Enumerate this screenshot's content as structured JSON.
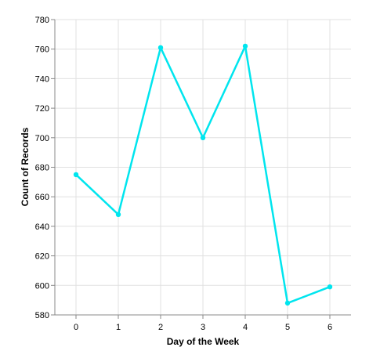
{
  "chart_data": {
    "type": "line",
    "title": "",
    "xlabel": "Day of the Week",
    "ylabel": "Count of Records",
    "x": [
      "0",
      "1",
      "2",
      "3",
      "4",
      "5",
      "6"
    ],
    "series": [
      {
        "values": [
          675,
          648,
          761,
          700,
          762,
          588,
          599
        ]
      }
    ],
    "ylim": [
      580,
      780
    ],
    "yticks": [
      "580",
      "600",
      "620",
      "640",
      "660",
      "680",
      "700",
      "720",
      "740",
      "760",
      "780"
    ],
    "grid": true,
    "line_color": "#00e5ee"
  }
}
